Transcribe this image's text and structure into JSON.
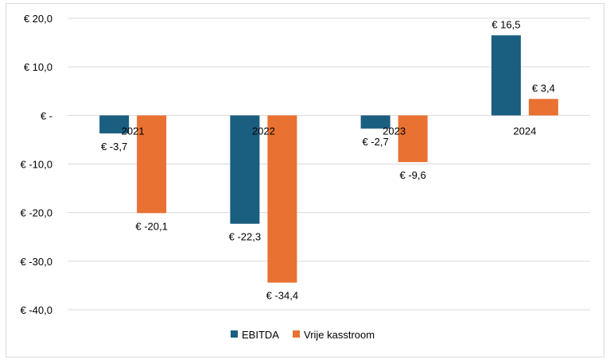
{
  "chart_data": {
    "type": "bar",
    "categories": [
      "2021",
      "2022",
      "2023",
      "2024"
    ],
    "series": [
      {
        "name": "EBITDA",
        "values": [
          -3.7,
          -22.3,
          -2.7,
          16.5
        ],
        "labels": [
          "€ -3,7",
          "€ -22,3",
          "€ -2,7",
          "€ 16,5"
        ],
        "color": "#1a5e80"
      },
      {
        "name": "Vrije kasstroom",
        "values": [
          -20.1,
          -34.4,
          -9.6,
          3.4
        ],
        "labels": [
          "€ -20,1",
          "€ -34,4",
          "€ -9,6",
          "€ 3,4"
        ],
        "color": "#e97132"
      }
    ],
    "yticks": [
      20,
      10,
      0,
      -10,
      -20,
      -30,
      -40
    ],
    "ytick_labels": [
      "€ 20,0",
      "€ 10,0",
      "€ -",
      "€ -10,0",
      "€ -20,0",
      "€ -30,0",
      "€ -40,0"
    ],
    "ylim": [
      -40,
      20
    ],
    "grid": true,
    "legend_position": "bottom"
  }
}
